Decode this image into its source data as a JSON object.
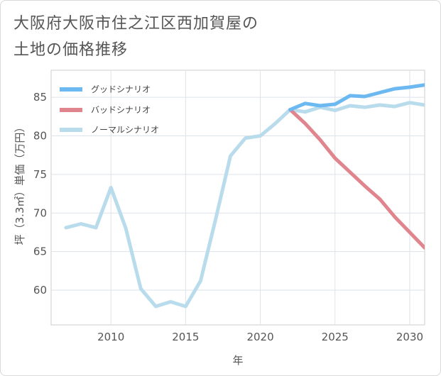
{
  "title_lines": [
    "大阪府大阪市住之江区西加賀屋の",
    "土地の価格推移"
  ],
  "chart_data": {
    "type": "line",
    "title": "大阪府大阪市住之江区西加賀屋の土地の価格推移",
    "xlabel": "年",
    "ylabel": "坪（3.3㎡）単価（万円）",
    "xlim": [
      2006,
      2031
    ],
    "ylim": [
      55.5,
      88.5
    ],
    "xticks": [
      2010,
      2015,
      2020,
      2025,
      2030
    ],
    "yticks": [
      60,
      65,
      70,
      75,
      80,
      85
    ],
    "grid": true,
    "legend_position": "top-left",
    "series": [
      {
        "name": "グッドシナリオ",
        "color": "#6cb8f0",
        "x": [
          2022,
          2023,
          2024,
          2025,
          2026,
          2027,
          2028,
          2029,
          2030,
          2031
        ],
        "values": [
          83.4,
          84.2,
          83.9,
          84.1,
          85.2,
          85.1,
          85.6,
          86.1,
          86.3,
          86.6
        ]
      },
      {
        "name": "バッドシナリオ",
        "color": "#e0858e",
        "x": [
          2022,
          2023,
          2024,
          2025,
          2026,
          2027,
          2028,
          2029,
          2030,
          2031
        ],
        "values": [
          83.4,
          81.6,
          79.5,
          77.1,
          75.3,
          73.5,
          71.8,
          69.5,
          67.5,
          65.5
        ]
      },
      {
        "name": "ノーマルシナリオ",
        "color": "#b9dcec",
        "x": [
          2007,
          2008,
          2009,
          2010,
          2011,
          2012,
          2013,
          2014,
          2015,
          2016,
          2017,
          2018,
          2019,
          2020,
          2021,
          2022,
          2023,
          2024,
          2025,
          2026,
          2027,
          2028,
          2029,
          2030,
          2031
        ],
        "values": [
          68.1,
          68.6,
          68.1,
          73.3,
          68.0,
          60.2,
          57.9,
          58.5,
          57.9,
          61.2,
          69.1,
          77.4,
          79.7,
          80.0,
          81.6,
          83.4,
          83.1,
          83.7,
          83.3,
          83.9,
          83.7,
          84.0,
          83.8,
          84.3,
          84.0
        ]
      }
    ]
  }
}
